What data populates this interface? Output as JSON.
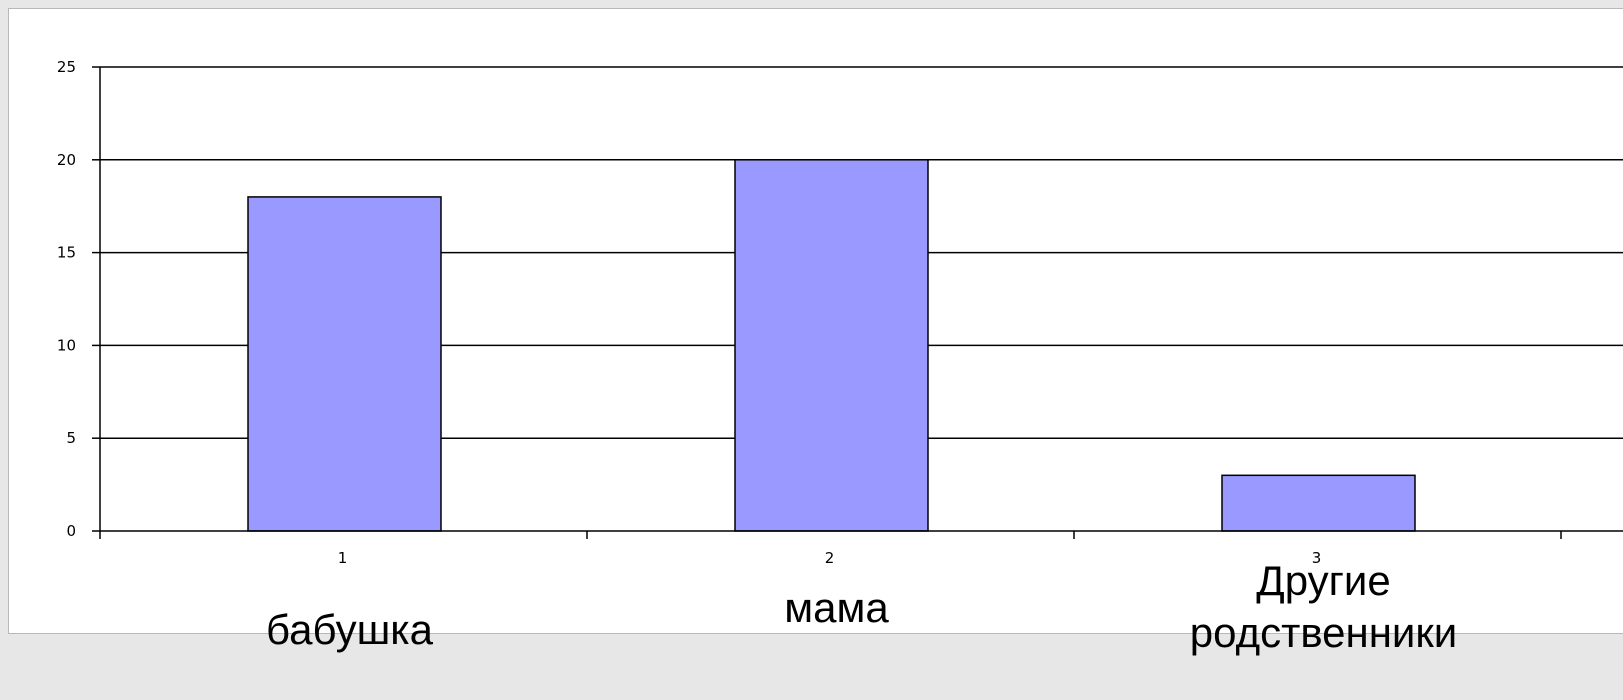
{
  "chart_data": {
    "type": "bar",
    "categories": [
      "1",
      "2",
      "3"
    ],
    "category_labels": [
      [
        "бабушка"
      ],
      [
        "мама"
      ],
      [
        "Другие",
        "родственники"
      ]
    ],
    "values": [
      18,
      20,
      3
    ],
    "title": "",
    "xlabel": "",
    "ylabel": "",
    "ylim": [
      0,
      25
    ],
    "yticks": [
      "0",
      "5",
      "10",
      "15",
      "20",
      "25"
    ],
    "grid": true,
    "legend": "none",
    "bar_color": "#9999ff",
    "bar_edge_color": "#000000"
  }
}
